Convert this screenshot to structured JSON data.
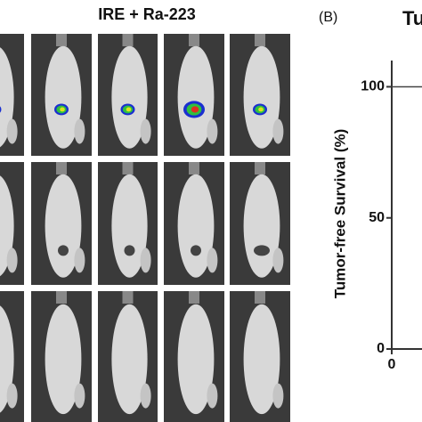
{
  "panel_a": {
    "title": "IRE + Ra-223"
  },
  "chart_data": {
    "type": "line",
    "panel_label": "(B)",
    "title": "Tu",
    "y_label": "Tumor-free Survival (%)",
    "x": [
      0
    ],
    "series": [
      {
        "color": "#444444",
        "values": [
          100
        ]
      }
    ],
    "ylim": [
      0,
      110
    ],
    "yticks": [
      0,
      50,
      100
    ],
    "xticks": [
      0
    ]
  }
}
